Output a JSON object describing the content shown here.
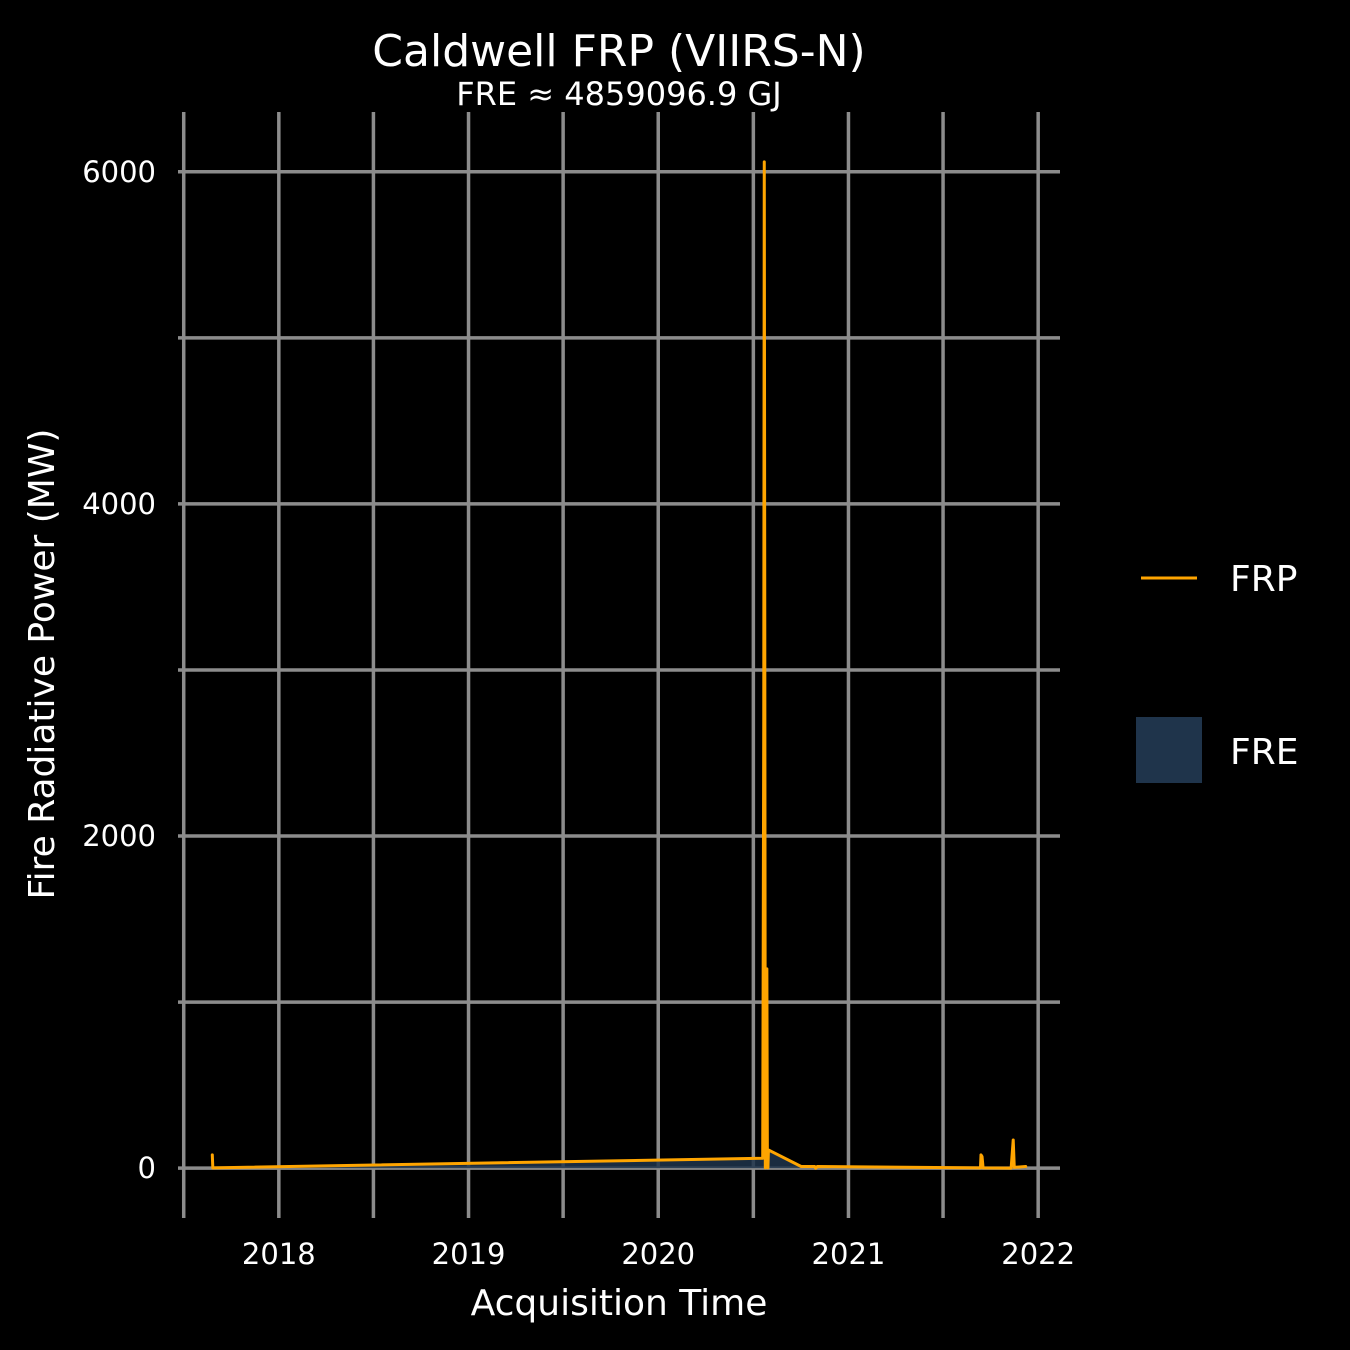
{
  "chart_data": {
    "type": "line",
    "title": "Caldwell FRP (VIIRS-N)",
    "subtitle": "FRE ≈ 4859096.9 GJ",
    "xlabel": "Acquisition Time",
    "ylabel": "Fire Radiative Power (MW)",
    "x_ticks": [
      "2018",
      "2019",
      "2020",
      "2021",
      "2022"
    ],
    "y_ticks": [
      "0",
      "2000",
      "4000",
      "6000"
    ],
    "xlim": [
      "2017-06-21",
      "2022-02-12"
    ],
    "ylim": [
      -300,
      6360
    ],
    "grid": true,
    "legend_position": "right",
    "series": [
      {
        "name": "FRP",
        "color": "#FFA500",
        "x": [
          "2017-08-26",
          "2017-08-27",
          "2020-07-20",
          "2020-07-22",
          "2020-07-23",
          "2020-07-24",
          "2020-07-25",
          "2020-07-26",
          "2020-07-27",
          "2020-07-28",
          "2020-07-29",
          "2020-07-30",
          "2020-07-31",
          "2020-10-02",
          "2020-10-28",
          "2020-10-30",
          "2020-11-02",
          "2021-09-12",
          "2021-09-13",
          "2021-09-15",
          "2021-09-17",
          "2021-11-10",
          "2021-11-14",
          "2021-11-16",
          "2021-12-08"
        ],
        "y": [
          80,
          2,
          60,
          2700,
          6060,
          3200,
          2,
          100,
          30,
          1200,
          10,
          2,
          110,
          10,
          10,
          0,
          10,
          2,
          80,
          70,
          2,
          0,
          170,
          5,
          10
        ]
      },
      {
        "name": "FRE",
        "color": "#1F344B",
        "kind": "area"
      }
    ]
  }
}
